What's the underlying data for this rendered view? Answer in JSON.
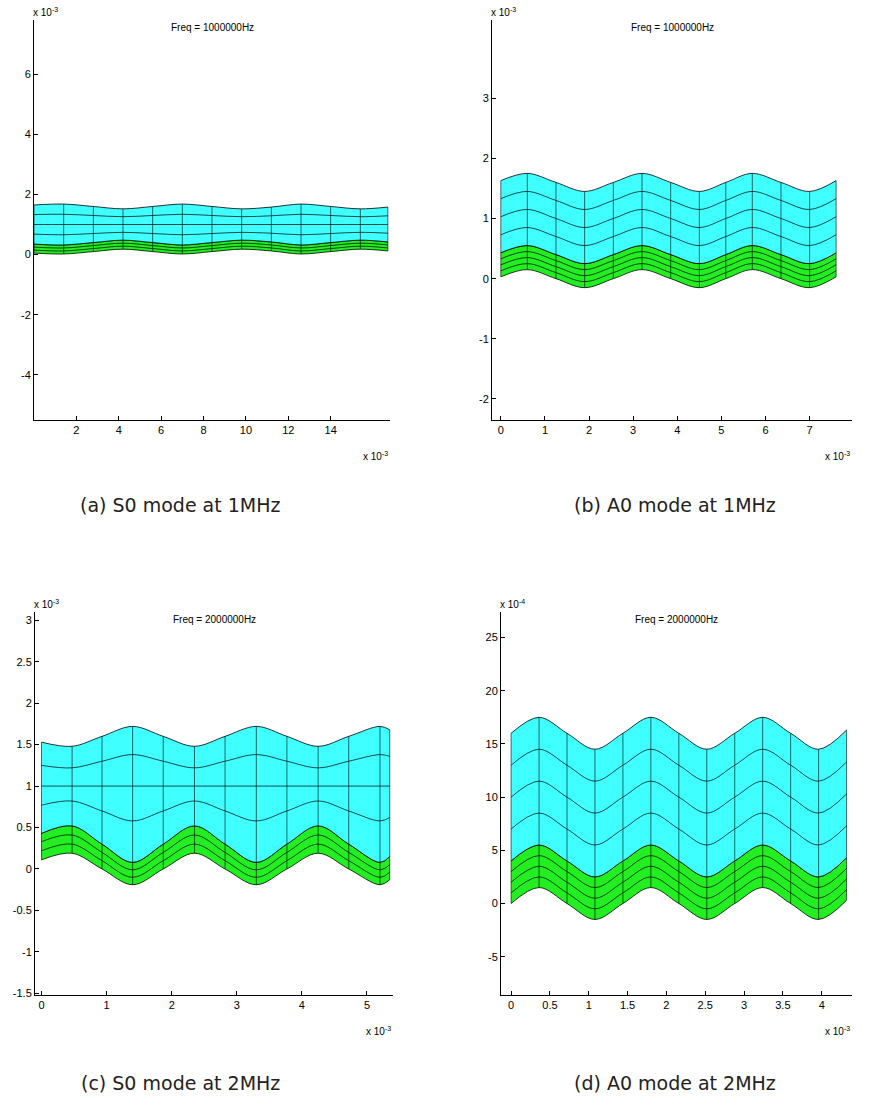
{
  "chart_data": [
    {
      "type": "mesh",
      "title": "Freq = 1000000Hz",
      "caption": "(a) S0 mode at 1MHz",
      "x_scale_label": {
        "base": "x 10",
        "exponent": "-3"
      },
      "y_scale_label": {
        "base": "x 10",
        "exponent": "-3"
      },
      "xlim": [
        0,
        16.8
      ],
      "xticks": [
        2,
        4,
        6,
        8,
        10,
        12,
        14
      ],
      "ylim": [
        -5.5,
        7.8
      ],
      "yticks": [
        -4,
        -2,
        0,
        2,
        4,
        6
      ],
      "x": [
        0,
        1.4,
        2.8,
        4.2,
        5.6,
        7.0,
        8.4,
        9.8,
        11.2,
        12.6,
        14.0,
        15.4,
        16.7
      ],
      "layers": [
        {
          "color": "#40ffff",
          "lines": [
            [
              1.65,
              1.68,
              1.6,
              1.52,
              1.6,
              1.68,
              1.6,
              1.52,
              1.58,
              1.68,
              1.6,
              1.52,
              1.58
            ],
            [
              1.33,
              1.34,
              1.3,
              1.26,
              1.3,
              1.34,
              1.3,
              1.26,
              1.29,
              1.34,
              1.3,
              1.26,
              1.29
            ],
            [
              1.0,
              1.0,
              1.0,
              1.0,
              1.0,
              1.0,
              1.0,
              1.0,
              1.0,
              1.0,
              1.0,
              1.0,
              1.0
            ],
            [
              0.68,
              0.66,
              0.7,
              0.74,
              0.7,
              0.66,
              0.7,
              0.74,
              0.71,
              0.66,
              0.7,
              0.74,
              0.71
            ],
            [
              0.35,
              0.32,
              0.4,
              0.48,
              0.4,
              0.32,
              0.4,
              0.48,
              0.42,
              0.32,
              0.4,
              0.48,
              0.42
            ]
          ]
        },
        {
          "color": "#22ee22",
          "lines": [
            [
              0.35,
              0.32,
              0.4,
              0.48,
              0.4,
              0.32,
              0.4,
              0.48,
              0.42,
              0.32,
              0.4,
              0.48,
              0.42
            ],
            [
              0.25,
              0.22,
              0.3,
              0.38,
              0.3,
              0.22,
              0.3,
              0.38,
              0.32,
              0.22,
              0.3,
              0.38,
              0.32
            ],
            [
              0.15,
              0.12,
              0.2,
              0.28,
              0.2,
              0.12,
              0.2,
              0.28,
              0.22,
              0.12,
              0.2,
              0.28,
              0.22
            ],
            [
              0.05,
              0.02,
              0.1,
              0.18,
              0.1,
              0.02,
              0.1,
              0.18,
              0.12,
              0.02,
              0.1,
              0.18,
              0.12
            ]
          ]
        }
      ]
    },
    {
      "type": "mesh",
      "title": "Freq = 1000000Hz",
      "caption": "(b) A0 mode at 1MHz",
      "x_scale_label": {
        "base": "x 10",
        "exponent": "-3"
      },
      "y_scale_label": {
        "base": "x 10",
        "exponent": "-3"
      },
      "xlim": [
        -0.2,
        7.96
      ],
      "xticks": [
        0,
        1,
        2,
        3,
        4,
        5,
        6,
        7
      ],
      "ylim": [
        -2.35,
        4.3
      ],
      "yticks": [
        -2,
        -1,
        0,
        1,
        2,
        3
      ],
      "x": [
        0,
        0.6,
        1.25,
        1.9,
        2.55,
        3.2,
        3.85,
        4.5,
        5.1,
        5.7,
        6.35,
        7.0,
        7.6
      ],
      "layers": [
        {
          "color": "#40ffff",
          "lines": [
            [
              1.63,
              1.75,
              1.6,
              1.45,
              1.6,
              1.75,
              1.6,
              1.45,
              1.6,
              1.75,
              1.6,
              1.45,
              1.63
            ],
            [
              1.33,
              1.45,
              1.3,
              1.15,
              1.3,
              1.45,
              1.3,
              1.15,
              1.3,
              1.45,
              1.3,
              1.15,
              1.33
            ],
            [
              1.03,
              1.15,
              1.0,
              0.85,
              1.0,
              1.15,
              1.0,
              0.85,
              1.0,
              1.15,
              1.0,
              0.85,
              1.03
            ],
            [
              0.73,
              0.85,
              0.7,
              0.55,
              0.7,
              0.85,
              0.7,
              0.55,
              0.7,
              0.85,
              0.7,
              0.55,
              0.73
            ],
            [
              0.43,
              0.55,
              0.4,
              0.25,
              0.4,
              0.55,
              0.4,
              0.25,
              0.4,
              0.55,
              0.4,
              0.25,
              0.43
            ]
          ]
        },
        {
          "color": "#22ee22",
          "lines": [
            [
              0.43,
              0.55,
              0.4,
              0.25,
              0.4,
              0.55,
              0.4,
              0.25,
              0.4,
              0.55,
              0.4,
              0.25,
              0.43
            ],
            [
              0.33,
              0.45,
              0.3,
              0.15,
              0.3,
              0.45,
              0.3,
              0.15,
              0.3,
              0.45,
              0.3,
              0.15,
              0.33
            ],
            [
              0.23,
              0.35,
              0.2,
              0.05,
              0.2,
              0.35,
              0.2,
              0.05,
              0.2,
              0.35,
              0.2,
              0.05,
              0.23
            ],
            [
              0.13,
              0.25,
              0.1,
              -0.05,
              0.1,
              0.25,
              0.1,
              -0.05,
              0.1,
              0.25,
              0.1,
              -0.05,
              0.13
            ],
            [
              0.03,
              0.15,
              0.0,
              -0.15,
              0.0,
              0.15,
              0.0,
              -0.15,
              0.0,
              0.15,
              0.0,
              -0.15,
              0.03
            ]
          ]
        }
      ]
    },
    {
      "type": "mesh",
      "title": "Freq = 2000000Hz",
      "caption": "(c) S0 mode at 2MHz",
      "x_scale_label": {
        "base": "x 10",
        "exponent": "-3"
      },
      "y_scale_label": {
        "base": "x 10",
        "exponent": "-3"
      },
      "xlim": [
        -0.1,
        5.4
      ],
      "xticks": [
        0,
        1,
        2,
        3,
        4,
        5
      ],
      "ylim": [
        -1.52,
        3.1
      ],
      "yticks": [
        -1.5,
        -1,
        -0.5,
        0,
        0.5,
        1,
        1.5,
        2,
        2.5,
        3
      ],
      "x": [
        0,
        0.47,
        0.93,
        1.4,
        1.87,
        2.35,
        2.82,
        3.3,
        3.77,
        4.25,
        4.72,
        5.2,
        5.35
      ],
      "layers": [
        {
          "color": "#40ffff",
          "lines": [
            [
              1.53,
              1.48,
              1.6,
              1.72,
              1.6,
              1.48,
              1.6,
              1.72,
              1.6,
              1.48,
              1.6,
              1.72,
              1.68
            ],
            [
              1.25,
              1.22,
              1.3,
              1.38,
              1.3,
              1.22,
              1.3,
              1.38,
              1.3,
              1.22,
              1.3,
              1.38,
              1.36
            ],
            [
              1.0,
              1.0,
              1.0,
              1.0,
              1.0,
              1.0,
              1.0,
              1.0,
              1.0,
              1.0,
              1.0,
              1.0,
              1.0
            ],
            [
              0.77,
              0.82,
              0.7,
              0.58,
              0.7,
              0.82,
              0.7,
              0.58,
              0.7,
              0.82,
              0.7,
              0.58,
              0.62
            ],
            [
              0.43,
              0.52,
              0.3,
              0.08,
              0.3,
              0.52,
              0.3,
              0.08,
              0.3,
              0.52,
              0.3,
              0.08,
              0.15
            ]
          ]
        },
        {
          "color": "#22ee22",
          "lines": [
            [
              0.43,
              0.52,
              0.3,
              0.08,
              0.3,
              0.52,
              0.3,
              0.08,
              0.3,
              0.52,
              0.3,
              0.08,
              0.15
            ],
            [
              0.33,
              0.41,
              0.2,
              -0.01,
              0.2,
              0.41,
              0.2,
              -0.01,
              0.2,
              0.41,
              0.2,
              -0.01,
              0.05
            ],
            [
              0.22,
              0.3,
              0.1,
              -0.1,
              0.1,
              0.3,
              0.1,
              -0.1,
              0.1,
              0.3,
              0.1,
              -0.1,
              -0.04
            ],
            [
              0.11,
              0.19,
              0.0,
              -0.19,
              0.0,
              0.19,
              0.0,
              -0.19,
              0.0,
              0.19,
              0.0,
              -0.19,
              -0.13
            ]
          ]
        }
      ]
    },
    {
      "type": "mesh",
      "title": "Freq = 2000000Hz",
      "caption": "(d) A0 mode at 2MHz",
      "x_scale_label": {
        "base": "x 10",
        "exponent": "-3"
      },
      "y_scale_label": {
        "base": "x 10",
        "exponent": "-4"
      },
      "xlim": [
        -0.13,
        4.39
      ],
      "xticks": [
        0,
        0.5,
        1,
        1.5,
        2,
        2.5,
        3,
        3.5,
        4
      ],
      "ylim": [
        -8.6,
        27.4
      ],
      "yticks": [
        -5,
        0,
        5,
        10,
        15,
        20,
        25
      ],
      "x": [
        0,
        0.36,
        0.72,
        1.08,
        1.44,
        1.8,
        2.16,
        2.52,
        2.88,
        3.24,
        3.6,
        3.96,
        4.32
      ],
      "layers": [
        {
          "color": "#40ffff",
          "lines": [
            [
              16,
              17.5,
              16,
              14.5,
              16,
              17.5,
              16,
              14.5,
              16,
              17.5,
              16,
              14.5,
              16.3
            ],
            [
              13,
              14.5,
              13,
              11.5,
              13,
              14.5,
              13,
              11.5,
              13,
              14.5,
              13,
              11.5,
              13.3
            ],
            [
              10,
              11.5,
              10,
              8.5,
              10,
              11.5,
              10,
              8.5,
              10,
              11.5,
              10,
              8.5,
              10.3
            ],
            [
              7,
              8.5,
              7,
              5.5,
              7,
              8.5,
              7,
              5.5,
              7,
              8.5,
              7,
              5.5,
              7.3
            ],
            [
              4,
              5.5,
              4,
              2.5,
              4,
              5.5,
              4,
              2.5,
              4,
              5.5,
              4,
              2.5,
              4.3
            ]
          ]
        },
        {
          "color": "#22ee22",
          "lines": [
            [
              4,
              5.5,
              4,
              2.5,
              4,
              5.5,
              4,
              2.5,
              4,
              5.5,
              4,
              2.5,
              4.3
            ],
            [
              3,
              4.5,
              3,
              1.5,
              3,
              4.5,
              3,
              1.5,
              3,
              4.5,
              3,
              1.5,
              3.3
            ],
            [
              2,
              3.5,
              2,
              0.5,
              2,
              3.5,
              2,
              0.5,
              2,
              3.5,
              2,
              0.5,
              2.3
            ],
            [
              1,
              2.5,
              1,
              -0.5,
              1,
              2.5,
              1,
              -0.5,
              1,
              2.5,
              1,
              -0.5,
              1.3
            ],
            [
              0,
              1.5,
              0,
              -1.5,
              0,
              1.5,
              0,
              -1.5,
              0,
              1.5,
              0,
              -1.5,
              0.3
            ]
          ]
        }
      ]
    }
  ]
}
